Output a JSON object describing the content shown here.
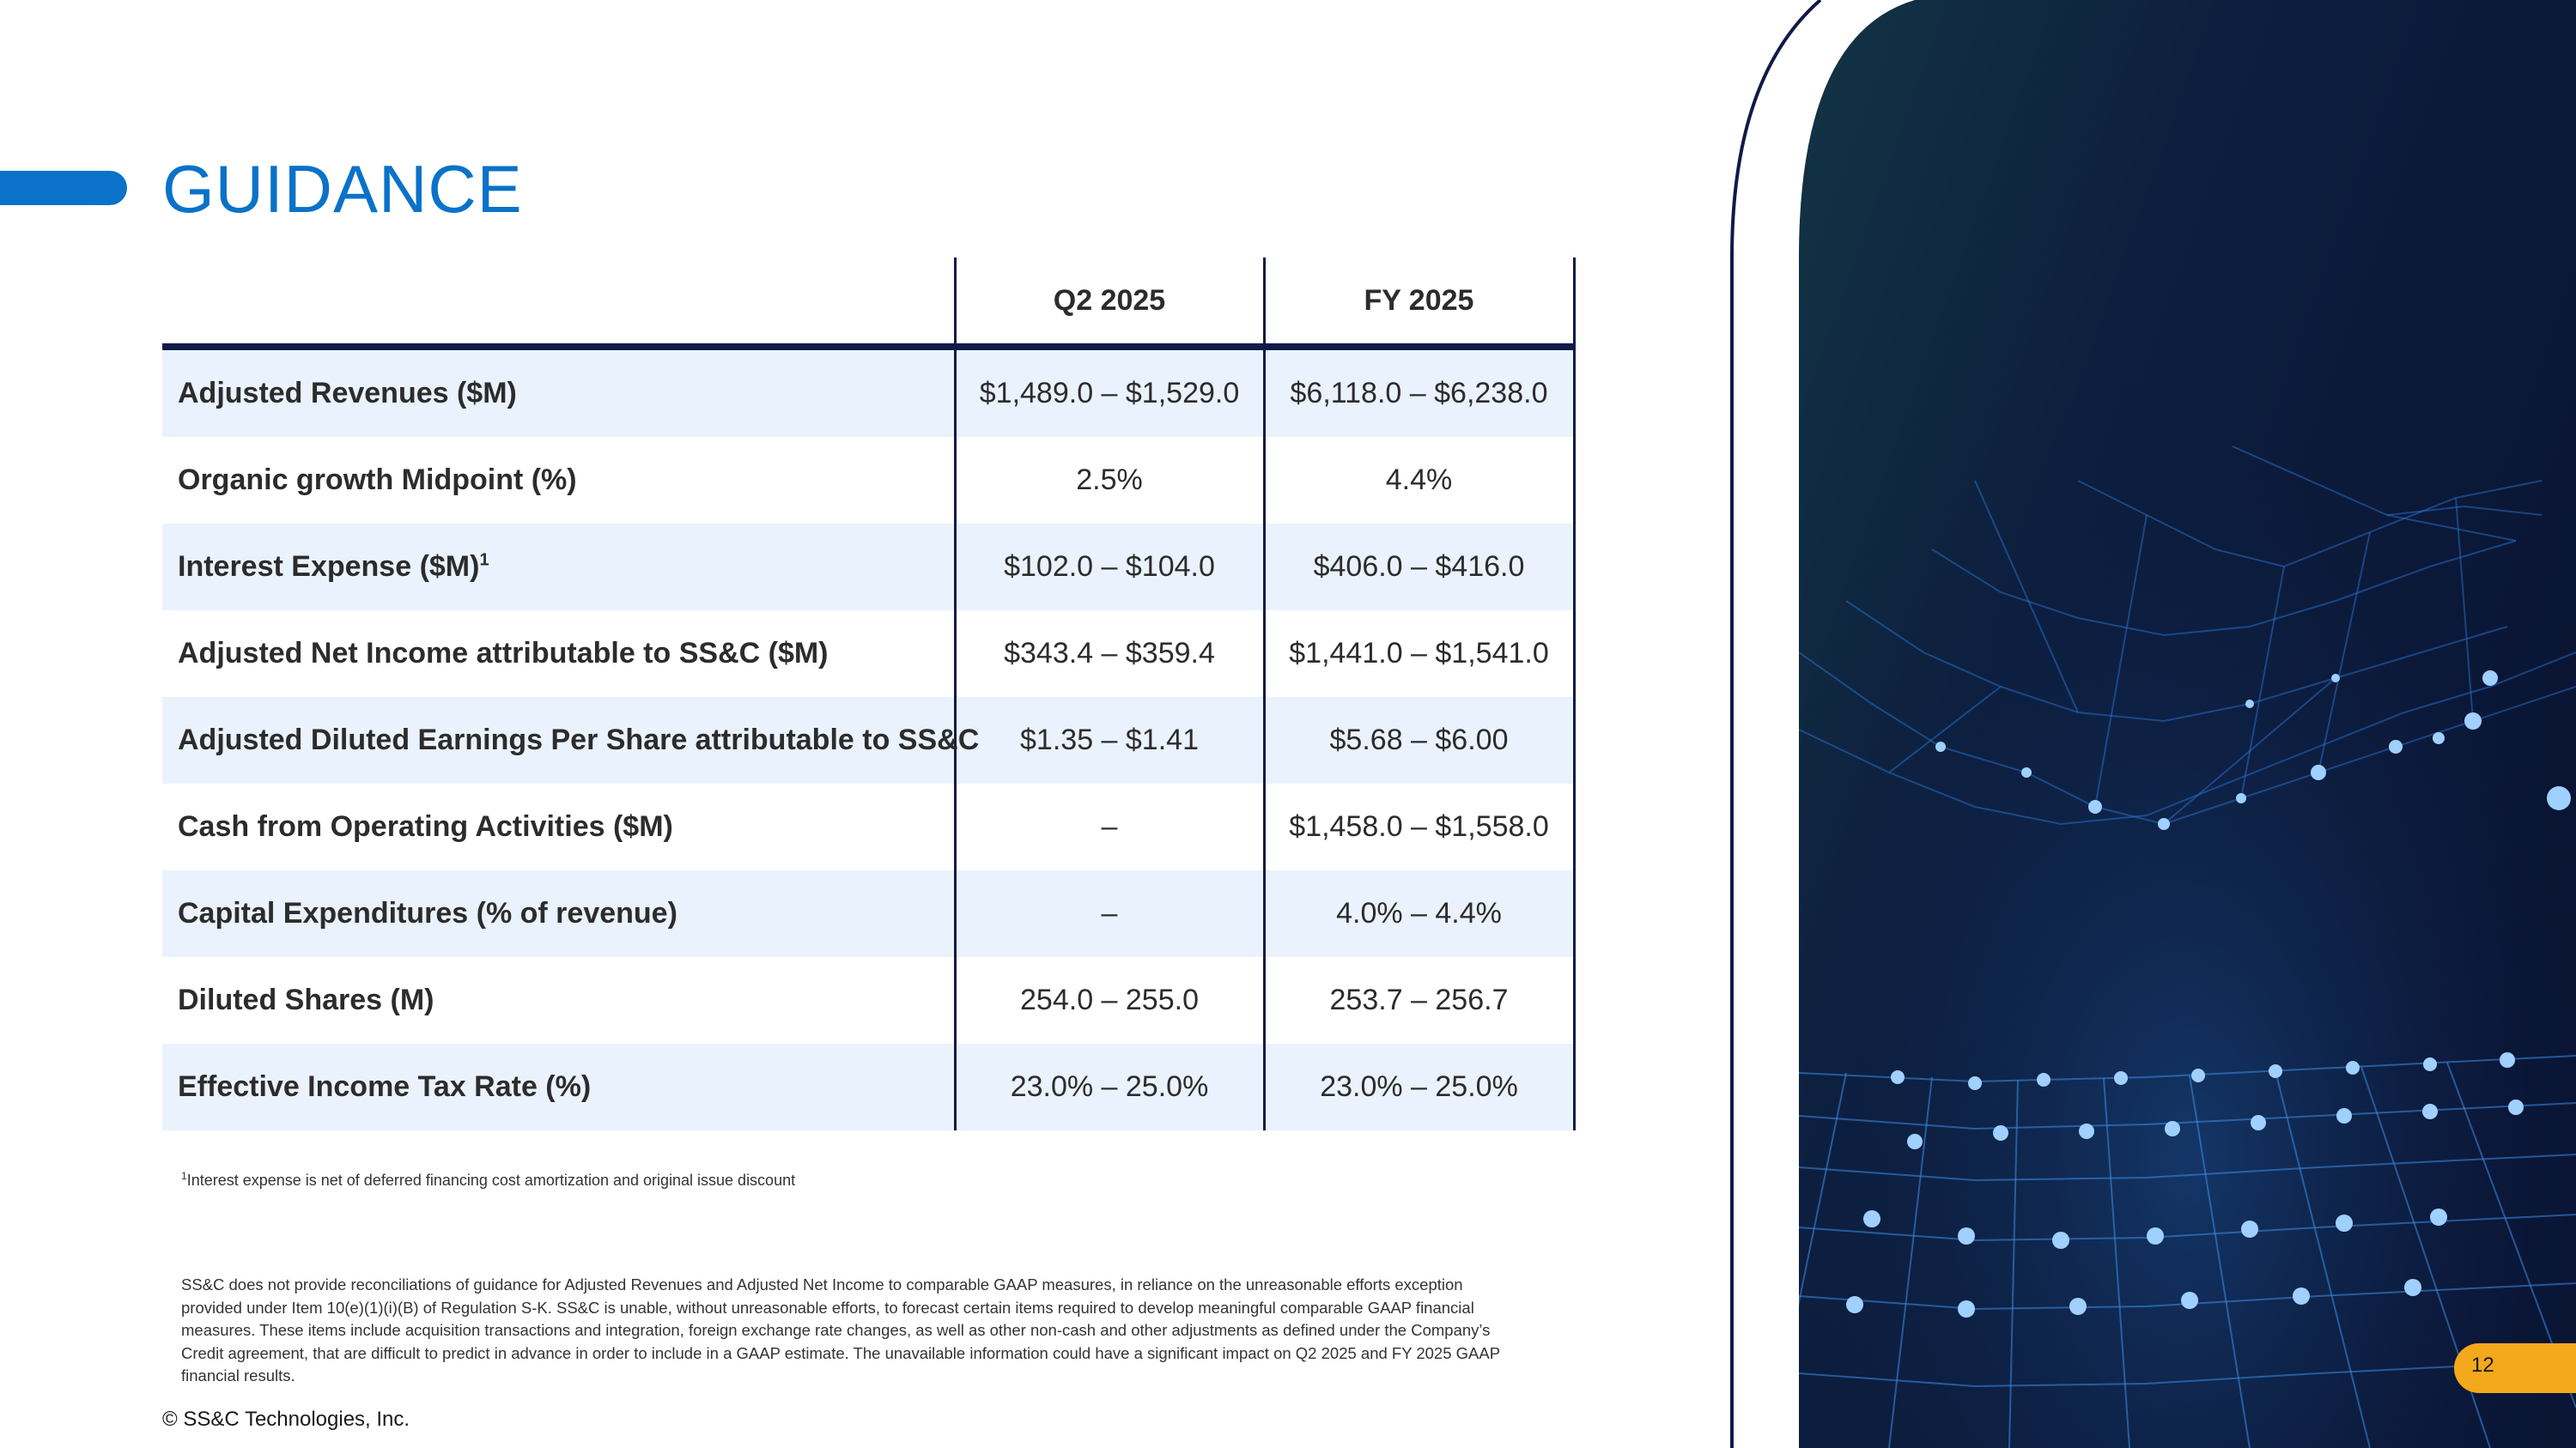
{
  "title": "GUIDANCE",
  "table": {
    "headers": [
      "",
      "Q2 2025",
      "FY 2025"
    ],
    "rows": [
      {
        "label": "Adjusted Revenues ($M)",
        "q2": "$1,489.0 – $1,529.0",
        "fy": "$6,118.0 – $6,238.0"
      },
      {
        "label": "Organic growth Midpoint (%)",
        "q2": "2.5%",
        "fy": "4.4%"
      },
      {
        "label": "Interest Expense ($M)",
        "sup": "1",
        "q2": "$102.0 – $104.0",
        "fy": "$406.0 – $416.0"
      },
      {
        "label": "Adjusted Net Income attributable to SS&C ($M)",
        "q2": "$343.4 – $359.4",
        "fy": "$1,441.0 – $1,541.0"
      },
      {
        "label": "Adjusted Diluted Earnings Per Share attributable to SS&C",
        "q2": "$1.35 – $1.41",
        "fy": "$5.68 – $6.00"
      },
      {
        "label": "Cash from Operating Activities ($M)",
        "q2": "–",
        "fy": "$1,458.0 – $1,558.0"
      },
      {
        "label": "Capital Expenditures (% of revenue)",
        "q2": "–",
        "fy": "4.0% – 4.4%"
      },
      {
        "label": "Diluted Shares (M)",
        "q2": "254.0 – 255.0",
        "fy": "253.7 – 256.7"
      },
      {
        "label": "Effective Income Tax Rate (%)",
        "q2": "23.0% – 25.0%",
        "fy": "23.0% – 25.0%"
      }
    ]
  },
  "footnote": {
    "marker": "1",
    "text": "Interest expense is net of deferred financing cost amortization and original issue discount"
  },
  "disclaimer": "SS&C does not provide reconciliations of guidance for Adjusted Revenues and Adjusted Net Income to comparable GAAP measures, in reliance on the unreasonable efforts exception provided under Item 10(e)(1)(i)(B) of Regulation S-K.  SS&C is unable, without unreasonable efforts, to forecast certain items required to develop meaningful comparable GAAP financial measures.  These items include acquisition transactions and integration, foreign exchange rate changes, as well as other non-cash and other adjustments as defined under the Company’s Credit agreement, that are difficult to predict in advance in order to include in a GAAP estimate.  The unavailable information could have a significant impact on Q2 2025 and FY 2025 GAAP financial results.",
  "copyright": "© SS&C Technologies, Inc.",
  "page_number": "12",
  "colors": {
    "accent": "#0a72c9",
    "navy": "#101a48",
    "row_shade": "#eaf2fd",
    "badge": "#f4a81c"
  },
  "icons": {
    "decorative_image": "network-mesh-image"
  }
}
